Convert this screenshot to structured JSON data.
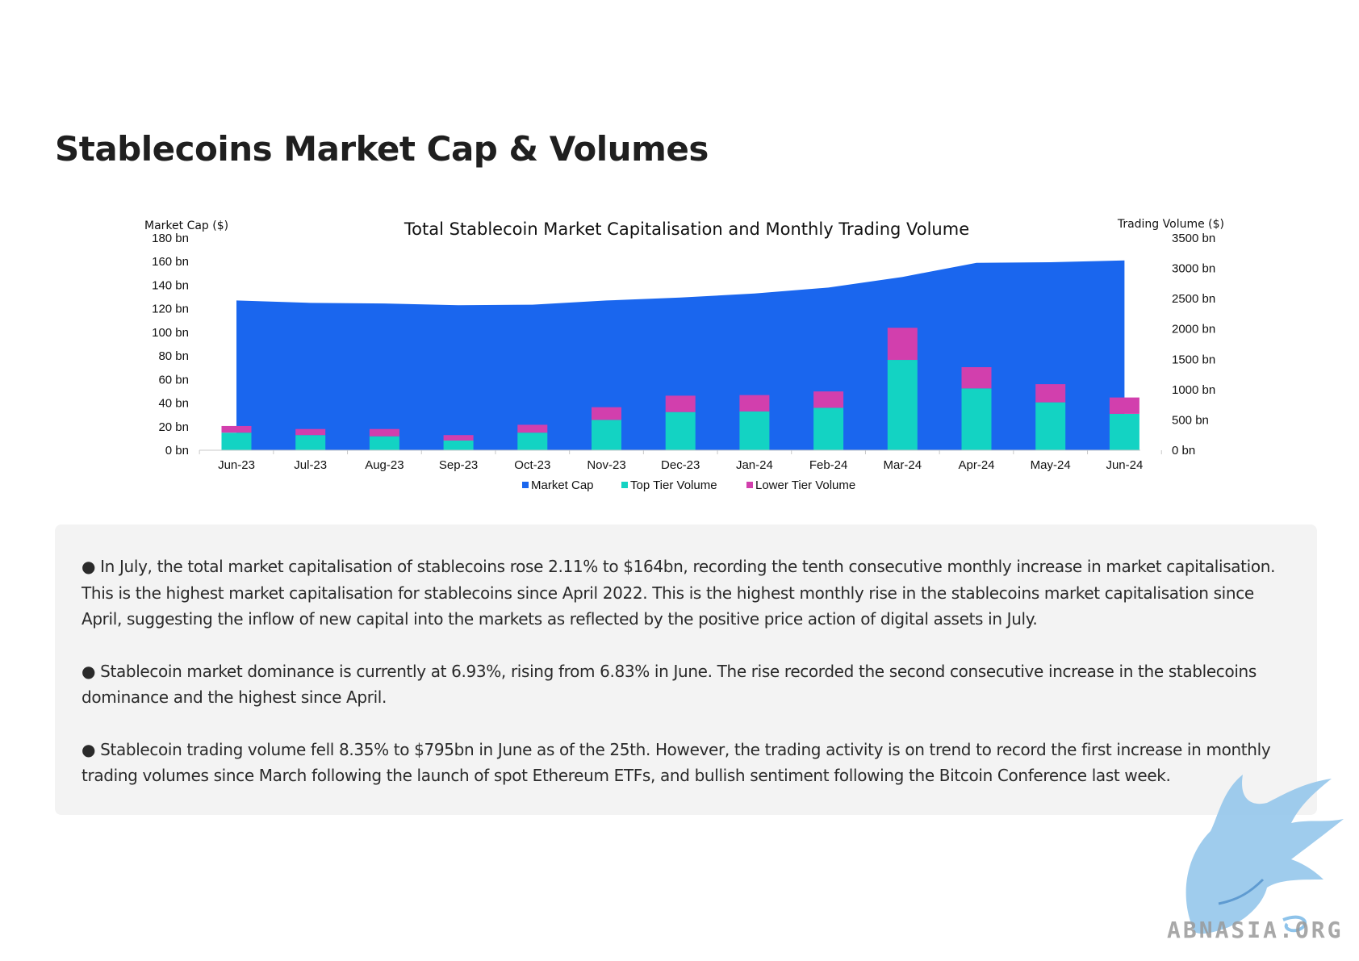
{
  "page": {
    "title": "Stablecoins Market Cap & Volumes"
  },
  "chart_data": {
    "type": "bar",
    "title": "Total Stablecoin Market Capitalisation and Monthly Trading Volume",
    "ylabel_left": "Market Cap ($)",
    "ylabel_right": "Trading Volume ($)",
    "categories": [
      "Jun-23",
      "Jul-23",
      "Aug-23",
      "Sep-23",
      "Oct-23",
      "Nov-23",
      "Dec-23",
      "Jan-24",
      "Feb-24",
      "Mar-24",
      "Apr-24",
      "May-24",
      "Jun-24"
    ],
    "left_axis": {
      "min": 0,
      "max": 180,
      "step": 20,
      "unit_suffix": " bn"
    },
    "right_axis": {
      "min": 0,
      "max": 3500,
      "step": 500,
      "unit_suffix": " bn"
    },
    "series": [
      {
        "name": "Market Cap",
        "type": "area",
        "axis": "left",
        "color": "#1a66ee",
        "values": [
          127,
          125,
          124.5,
          123,
          123.5,
          127,
          129.5,
          133,
          138,
          147,
          159,
          159.5,
          161
        ]
      },
      {
        "name": "Top Tier Volume",
        "type": "stacked-bar",
        "axis": "right",
        "color": "#13d3c3",
        "values": [
          290,
          250,
          230,
          160,
          290,
          500,
          630,
          640,
          700,
          1490,
          1020,
          790,
          600
        ]
      },
      {
        "name": "Lower Tier Volume",
        "type": "stacked-bar",
        "axis": "right",
        "color": "#d23fad",
        "values": [
          110,
          100,
          120,
          90,
          130,
          210,
          270,
          270,
          270,
          530,
          350,
          300,
          270
        ]
      }
    ],
    "legend_position": "bottom",
    "grid": false
  },
  "notes": [
    "● In July, the total market capitalisation of stablecoins rose 2.11% to $164bn, recording the tenth consecutive monthly increase in market capitalisation. This is the highest market capitalisation for stablecoins since April 2022. This is the highest monthly rise in the stablecoins market capitalisation since April, suggesting the inflow of new capital into the markets as reflected by the positive price action of digital assets in July.",
    "● Stablecoin market dominance is currently at 6.93%, rising from 6.83% in June. The rise recorded the second consecutive increase in the stablecoins dominance and the highest since April.",
    "● Stablecoin trading volume fell 8.35% to $795bn in June as of the 25th. However, the trading activity is on trend to record the first increase in monthly trading volumes since March following the launch of spot Ethereum ETFs, and bullish sentiment following the Bitcoin Conference last week."
  ],
  "watermark": {
    "text": "ABNASIA.ORG"
  }
}
